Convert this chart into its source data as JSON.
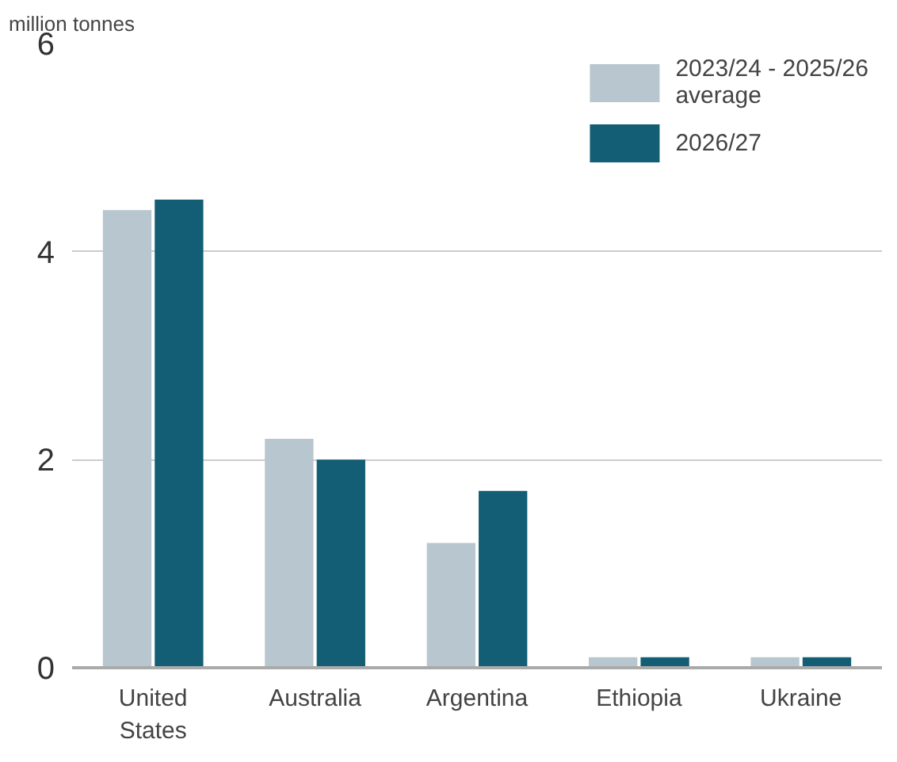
{
  "chart_data": {
    "type": "bar",
    "ylabel": "million tonnes",
    "categories": [
      "United States",
      "Australia",
      "Argentina",
      "Ethiopia",
      "Ukraine"
    ],
    "series": [
      {
        "name": "2023/24 - 2025/26 average",
        "color": "#b8c6cf",
        "values": [
          4.4,
          2.2,
          1.2,
          0.1,
          0.1
        ]
      },
      {
        "name": "2026/27",
        "color": "#135e75",
        "values": [
          4.5,
          2.0,
          1.7,
          0.1,
          0.1
        ]
      }
    ],
    "ylim": [
      0,
      6
    ],
    "yticks": [
      0,
      2,
      4,
      6
    ],
    "grid": "y",
    "legend": "top right"
  }
}
